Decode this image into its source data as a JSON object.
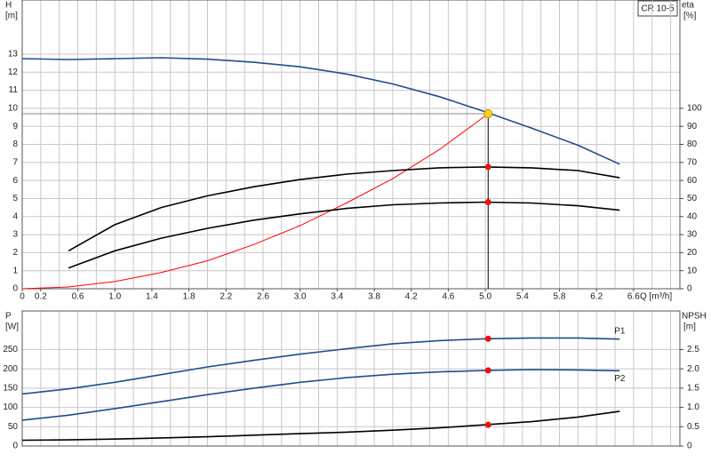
{
  "chart_data": [
    {
      "type": "line",
      "title": "CR 10-5",
      "ylabel": "H",
      "yunit": "[m]",
      "y2label": "eta",
      "y2unit": "[%]",
      "xlabel": "Q [m³/h]",
      "xlim": [
        0,
        7.1
      ],
      "ylim": [
        0,
        16
      ],
      "y2lim": [
        0,
        160
      ],
      "xticks": [
        0,
        0.2,
        0.6,
        {
          "value": 1,
          "label": "1.0"
        },
        1.4,
        1.8,
        2.2,
        2.6,
        {
          "value": 3,
          "label": "3.0"
        },
        3.4,
        3.8,
        4.2,
        4.6,
        {
          "value": 5,
          "label": "5.0"
        },
        5.4,
        5.8,
        6.2,
        6.6
      ],
      "xgrid": [
        0,
        0.2,
        0.4,
        0.6,
        0.8,
        1,
        1.2,
        1.4,
        1.6,
        1.8,
        2,
        2.2,
        2.4,
        2.6,
        2.8,
        3,
        3.2,
        3.4,
        3.6,
        3.8,
        4,
        4.2,
        4.4,
        4.6,
        4.8,
        5,
        5.2,
        5.4,
        5.6,
        5.8,
        6,
        6.2,
        6.4,
        6.6,
        6.8,
        7
      ],
      "yticks": [
        0,
        1,
        2,
        3,
        4,
        5,
        6,
        7,
        8,
        9,
        10,
        11,
        12,
        13
      ],
      "y2ticks": [
        0,
        10,
        20,
        30,
        40,
        50,
        60,
        70,
        80,
        90,
        100
      ],
      "grid": true,
      "operating_point": {
        "x": 5.03,
        "y": 9.7
      },
      "series": [
        {
          "color": "#1f4e8c",
          "x": [
            0,
            0.5,
            1,
            1.5,
            2,
            2.5,
            3,
            3.5,
            4,
            4.5,
            5,
            5.5,
            6,
            6.45
          ],
          "values": [
            12.75,
            12.7,
            12.75,
            12.8,
            12.72,
            12.55,
            12.3,
            11.9,
            11.35,
            10.65,
            9.8,
            8.9,
            7.95,
            6.9
          ]
        },
        {
          "color": "#ff0000",
          "x": [
            0,
            0.5,
            1,
            1.5,
            2,
            2.5,
            3,
            3.5,
            4,
            4.5,
            5.03
          ],
          "values": [
            0,
            0.1,
            0.4,
            0.9,
            1.55,
            2.45,
            3.5,
            4.75,
            6.1,
            7.7,
            9.7
          ]
        },
        {
          "color": "#000000",
          "axis": "y2",
          "x": [
            0.5,
            1,
            1.5,
            2,
            2.5,
            3,
            3.5,
            4,
            4.5,
            5,
            5.5,
            6,
            6.45
          ],
          "values": [
            21,
            35.5,
            45,
            51.5,
            56.5,
            60.5,
            63.5,
            65.5,
            67,
            67.5,
            67,
            65.5,
            61.5
          ],
          "marker": {
            "x": 5.03,
            "y": 67.5
          }
        },
        {
          "color": "#000000",
          "axis": "y2",
          "x": [
            0.5,
            1,
            1.5,
            2,
            2.5,
            3,
            3.5,
            4,
            4.5,
            5,
            5.5,
            6,
            6.45
          ],
          "values": [
            11.5,
            21,
            28,
            33.5,
            38,
            41.5,
            44.5,
            46.5,
            47.5,
            48,
            47.5,
            46,
            43.5
          ],
          "marker": {
            "x": 5.03,
            "y": 48
          }
        }
      ]
    },
    {
      "type": "line",
      "ylabel": "P",
      "yunit": "[W]",
      "y2label": "NPSH",
      "y2unit": "[m]",
      "xlim": [
        0,
        7.1
      ],
      "ylim": [
        0,
        350
      ],
      "y2lim": [
        0,
        3.5
      ],
      "xgrid": [
        0,
        0.2,
        0.4,
        0.6,
        0.8,
        1,
        1.2,
        1.4,
        1.6,
        1.8,
        2,
        2.2,
        2.4,
        2.6,
        2.8,
        3,
        3.2,
        3.4,
        3.6,
        3.8,
        4,
        4.2,
        4.4,
        4.6,
        4.8,
        5,
        5.2,
        5.4,
        5.6,
        5.8,
        6,
        6.2,
        6.4,
        6.6,
        6.8,
        7
      ],
      "yticks": [
        0,
        50,
        100,
        150,
        200,
        250
      ],
      "y2ticks": [
        0,
        0.5,
        {
          "value": 1,
          "label": "1.0"
        },
        1.5,
        {
          "value": 2,
          "label": "2.0"
        },
        2.5
      ],
      "grid": true,
      "series": [
        {
          "name": "P1",
          "color": "#1f4e8c",
          "x": [
            0,
            0.5,
            1,
            1.5,
            2,
            2.5,
            3,
            3.5,
            4,
            4.5,
            5,
            5.5,
            6,
            6.45
          ],
          "values": [
            135,
            148,
            165,
            185,
            205,
            222,
            238,
            252,
            265,
            273,
            278,
            280,
            280,
            277
          ],
          "marker": {
            "x": 5.03,
            "y": 278
          }
        },
        {
          "name": "P2",
          "color": "#1f4e8c",
          "x": [
            0,
            0.5,
            1,
            1.5,
            2,
            2.5,
            3,
            3.5,
            4,
            4.5,
            5,
            5.5,
            6,
            6.45
          ],
          "values": [
            67,
            80,
            97,
            115,
            133,
            150,
            165,
            177,
            186,
            192,
            196,
            198,
            197,
            195
          ],
          "marker": {
            "x": 5.03,
            "y": 196
          }
        },
        {
          "color": "#000000",
          "axis": "y2",
          "x": [
            0,
            0.5,
            1,
            1.5,
            2,
            2.5,
            3,
            3.5,
            4,
            4.5,
            5,
            5.5,
            6,
            6.45
          ],
          "values": [
            0.15,
            0.16,
            0.18,
            0.21,
            0.24,
            0.28,
            0.32,
            0.36,
            0.41,
            0.47,
            0.55,
            0.63,
            0.75,
            0.9
          ],
          "marker": {
            "x": 5.03,
            "y": 0.55
          }
        }
      ]
    }
  ]
}
